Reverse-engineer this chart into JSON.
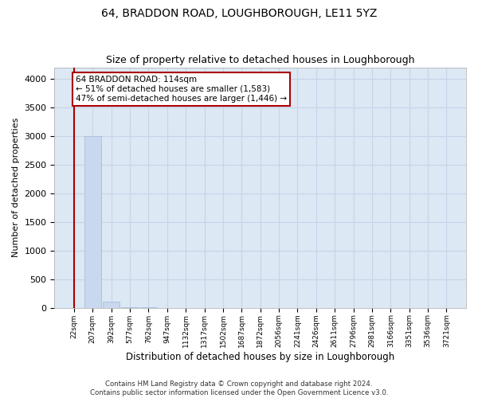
{
  "title": "64, BRADDON ROAD, LOUGHBOROUGH, LE11 5YZ",
  "subtitle": "Size of property relative to detached houses in Loughborough",
  "xlabel": "Distribution of detached houses by size in Loughborough",
  "ylabel": "Number of detached properties",
  "footer_line1": "Contains HM Land Registry data © Crown copyright and database right 2024.",
  "footer_line2": "Contains public sector information licensed under the Open Government Licence v3.0.",
  "bin_labels": [
    "22sqm",
    "207sqm",
    "392sqm",
    "577sqm",
    "762sqm",
    "947sqm",
    "1132sqm",
    "1317sqm",
    "1502sqm",
    "1687sqm",
    "1872sqm",
    "2056sqm",
    "2241sqm",
    "2426sqm",
    "2611sqm",
    "2796sqm",
    "2981sqm",
    "3166sqm",
    "3351sqm",
    "3536sqm",
    "3721sqm"
  ],
  "bar_values": [
    0,
    3000,
    100,
    8,
    4,
    2,
    1,
    1,
    1,
    1,
    1,
    0,
    0,
    0,
    0,
    0,
    0,
    0,
    0,
    0
  ],
  "bar_color": "#c8d8ee",
  "bar_edge_color": "#a0b8d8",
  "property_size": 114,
  "property_size_label": "64 BRADDON ROAD: 114sqm",
  "annotation_line1": "← 51% of detached houses are smaller (1,583)",
  "annotation_line2": "47% of semi-detached houses are larger (1,446) →",
  "vline_color": "#aa0000",
  "annotation_box_color": "#aa0000",
  "annotation_text_color": "#000000",
  "grid_color": "#c8d4e8",
  "background_color": "#dce8f4",
  "ylim": [
    0,
    4200
  ],
  "yticks": [
    0,
    500,
    1000,
    1500,
    2000,
    2500,
    3000,
    3500,
    4000
  ],
  "title_fontsize": 10,
  "subtitle_fontsize": 9
}
